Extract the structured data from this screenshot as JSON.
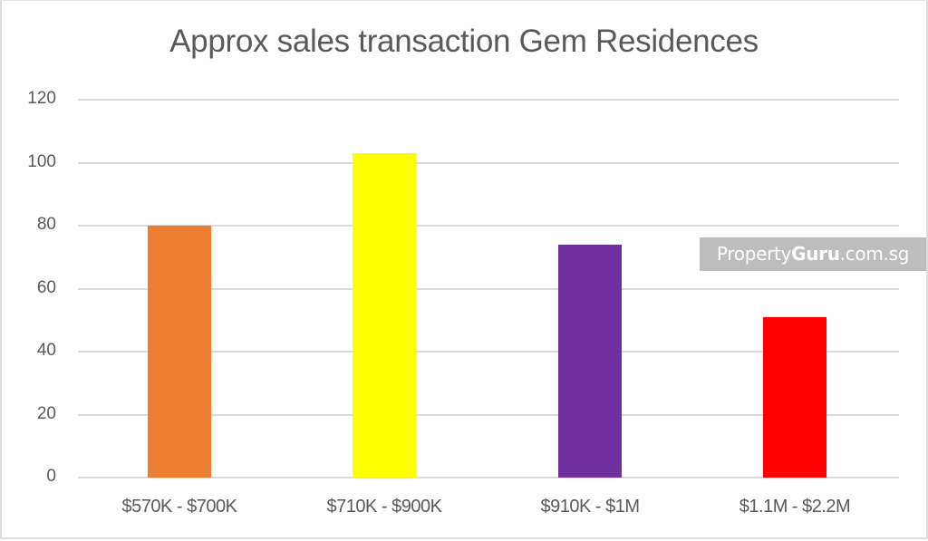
{
  "chart_data": {
    "type": "bar",
    "title": "Approx sales transaction Gem Residences",
    "xlabel": "",
    "ylabel": "",
    "categories": [
      "$570K - $700K",
      "$710K - $900K",
      "$910K - $1M",
      "$1.1M - $2.2M"
    ],
    "values": [
      80,
      103,
      74,
      51
    ],
    "colors": [
      "#ed7d31",
      "#ffff00",
      "#7030a0",
      "#ff0000"
    ],
    "ylim": [
      0,
      120
    ],
    "yticks": [
      0,
      20,
      40,
      60,
      80,
      100,
      120
    ],
    "grid": true,
    "legend": null
  },
  "watermark": {
    "prefix": "Property",
    "bold": "Guru",
    "suffix": ".com.sg"
  }
}
